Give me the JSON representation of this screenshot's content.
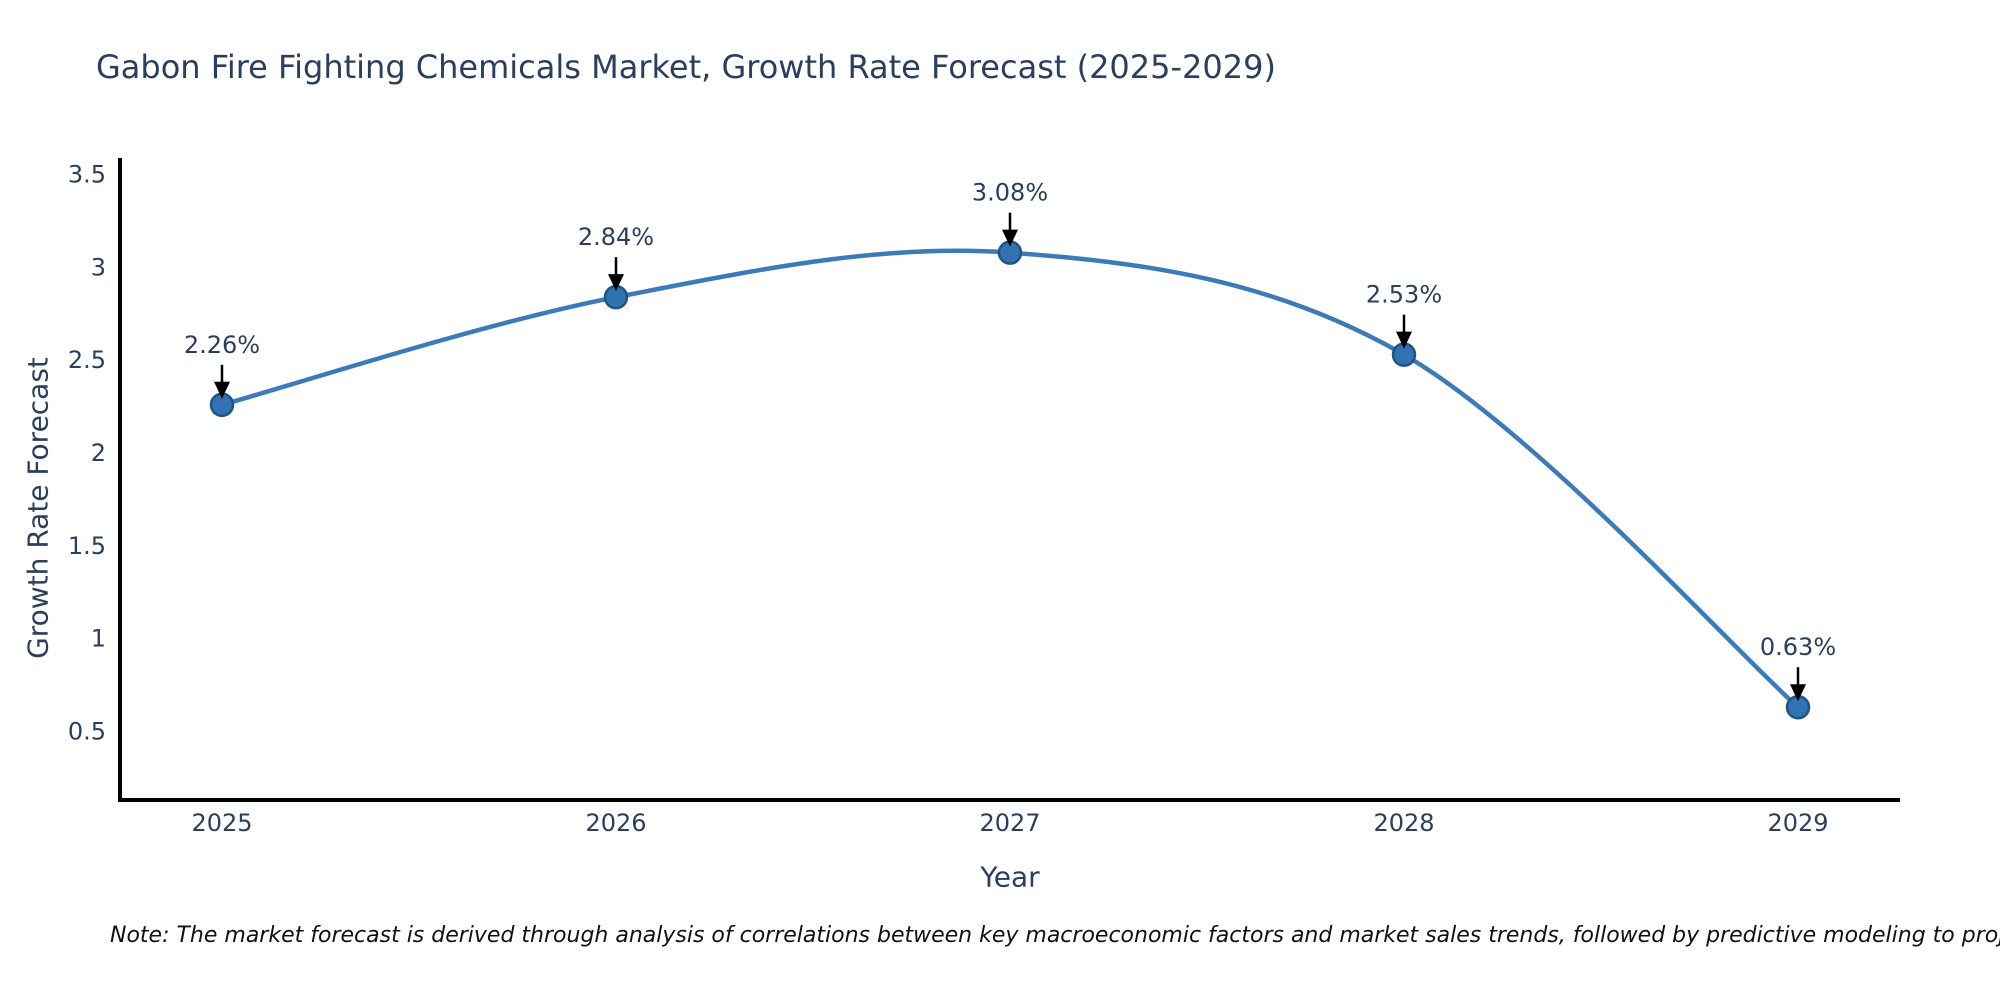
{
  "page": {
    "background": "#ffffff"
  },
  "chart_data": {
    "type": "line",
    "title": "Gabon Fire Fighting Chemicals Market, Growth Rate Forecast (2025-2029)",
    "xlabel": "Year",
    "ylabel": "Growth Rate Forecast",
    "categories": [
      "2025",
      "2026",
      "2027",
      "2028",
      "2029"
    ],
    "series": [
      {
        "name": "Growth Rate Forecast",
        "values": [
          2.26,
          2.84,
          3.08,
          2.53,
          0.63
        ]
      }
    ],
    "point_labels": [
      "2.26%",
      "2.84%",
      "3.08%",
      "2.53%",
      "0.63%"
    ],
    "yticks": [
      0.5,
      1,
      1.5,
      2,
      2.5,
      3,
      3.5
    ],
    "ytick_labels": [
      "0.5",
      "1",
      "1.5",
      "2",
      "2.5",
      "3",
      "3.5"
    ],
    "ylim": [
      0.13,
      3.59
    ],
    "line_shape": "spline",
    "grid": false,
    "legend_position": "none",
    "colors": {
      "line": "#3d7ab8",
      "marker_fill": "#3173b2",
      "marker_edge": "#1f5582",
      "axis_line": "#000000",
      "tick_text": "#2a3f5f",
      "annotation_text": "#2a3f5f",
      "arrow": "#000000",
      "title_text": "#2a3f5f"
    }
  },
  "note": {
    "text": "Note: The market forecast is derived through analysis of correlations between key macroeconomic factors and market sales trends, followed by predictive modeling to project future sales"
  }
}
